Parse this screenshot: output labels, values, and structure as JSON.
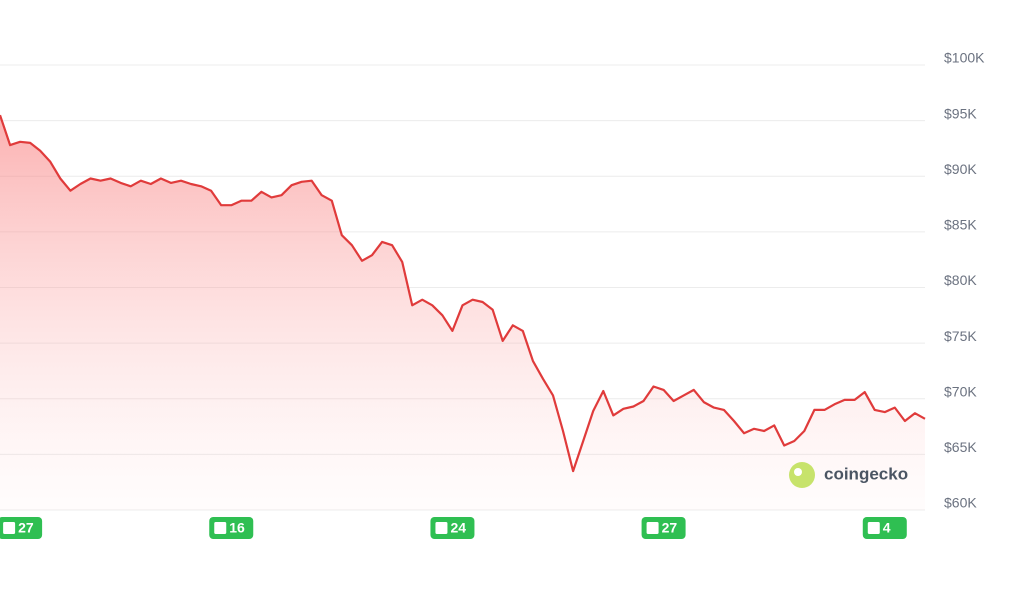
{
  "chart_data": {
    "type": "line",
    "color": "#e03b3b",
    "grid": true,
    "watermark": "coingecko",
    "ylim": [
      60000,
      100000
    ],
    "yticks": [
      {
        "value": 60000,
        "label": "$60K"
      },
      {
        "value": 65000,
        "label": "$65K"
      },
      {
        "value": 70000,
        "label": "$70K"
      },
      {
        "value": 75000,
        "label": "$75K"
      },
      {
        "value": 80000,
        "label": "$80K"
      },
      {
        "value": 85000,
        "label": "$85K"
      },
      {
        "value": 90000,
        "label": "$90K"
      },
      {
        "value": 95000,
        "label": "$95K"
      },
      {
        "value": 100000,
        "label": "$100K"
      }
    ],
    "categories": [
      null,
      null,
      "27",
      null,
      null,
      null,
      null,
      null,
      null,
      null,
      null,
      null,
      null,
      null,
      null,
      null,
      null,
      null,
      null,
      null,
      null,
      null,
      null,
      "16",
      null,
      null,
      null,
      null,
      null,
      null,
      null,
      null,
      null,
      null,
      null,
      null,
      null,
      null,
      null,
      null,
      null,
      null,
      null,
      null,
      null,
      "24",
      null,
      null,
      null,
      null,
      null,
      null,
      null,
      null,
      null,
      null,
      null,
      null,
      null,
      null,
      null,
      null,
      null,
      null,
      null,
      null,
      "27",
      null,
      null,
      null,
      null,
      null,
      null,
      null,
      null,
      null,
      null,
      null,
      null,
      null,
      null,
      null,
      null,
      null,
      null,
      null,
      null,
      null,
      "4",
      null,
      null,
      null,
      null
    ],
    "values": [
      95500,
      92800,
      93100,
      93000,
      92300,
      91300,
      89800,
      88700,
      89300,
      89800,
      89600,
      89800,
      89400,
      89100,
      89600,
      89300,
      89800,
      89400,
      89600,
      89300,
      89100,
      88700,
      87400,
      87400,
      87800,
      87800,
      88600,
      88100,
      88300,
      89200,
      89500,
      89600,
      88300,
      87800,
      84700,
      83800,
      82400,
      82900,
      84100,
      83800,
      82300,
      78400,
      78900,
      78400,
      77500,
      76100,
      78400,
      78900,
      78700,
      78000,
      75200,
      76600,
      76100,
      73400,
      71800,
      70300,
      67100,
      63500,
      66200,
      68900,
      70700,
      68500,
      69100,
      69300,
      69800,
      71100,
      70800,
      69800,
      70300,
      70800,
      69700,
      69200,
      69000,
      68000,
      66900,
      67300,
      67100,
      67600,
      65800,
      66200,
      67100,
      69000,
      69000,
      69500,
      69900,
      69900,
      70600,
      69000,
      68800,
      69200,
      68000,
      68700,
      68200
    ]
  }
}
